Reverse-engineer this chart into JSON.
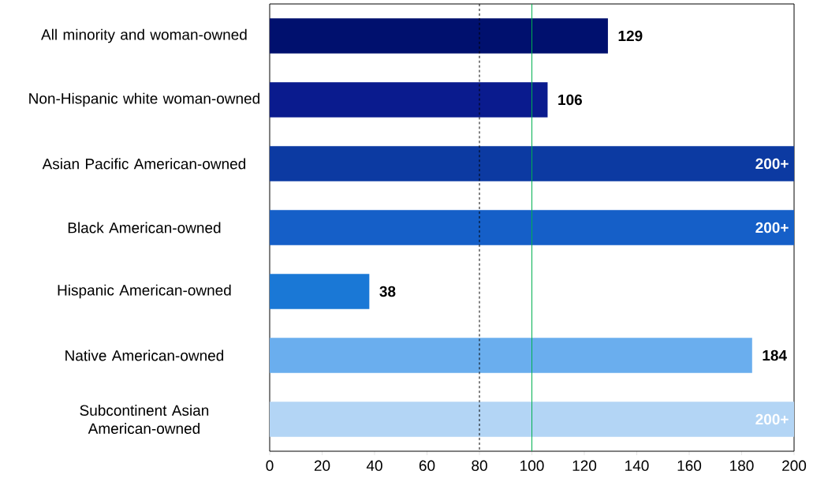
{
  "chart_data": {
    "type": "bar",
    "orientation": "horizontal",
    "categories": [
      "All minority and woman-owned",
      "Non-Hispanic white woman-owned",
      "Asian Pacific American-owned",
      "Black American-owned",
      "Hispanic American-owned",
      "Native American-owned",
      "Subcontinent Asian American-owned"
    ],
    "values": [
      129,
      106,
      200,
      200,
      38,
      184,
      200
    ],
    "value_labels": [
      "129",
      "106",
      "200+",
      "200+",
      "38",
      "184",
      "200+"
    ],
    "colors": [
      "#00106e",
      "#0a1b8e",
      "#0c3aa2",
      "#155fc8",
      "#1a78d6",
      "#6aaeee",
      "#b3d5f5"
    ],
    "xlim": [
      0,
      200
    ],
    "xticks": [
      0,
      20,
      40,
      60,
      80,
      100,
      120,
      140,
      160,
      180,
      200
    ],
    "ref_lines": [
      {
        "axis": "x",
        "value": 80,
        "color": "#000000",
        "line_style": "dashed"
      },
      {
        "axis": "x",
        "value": 100,
        "color": "#00b050",
        "line_style": "solid"
      }
    ],
    "grid": false
  }
}
